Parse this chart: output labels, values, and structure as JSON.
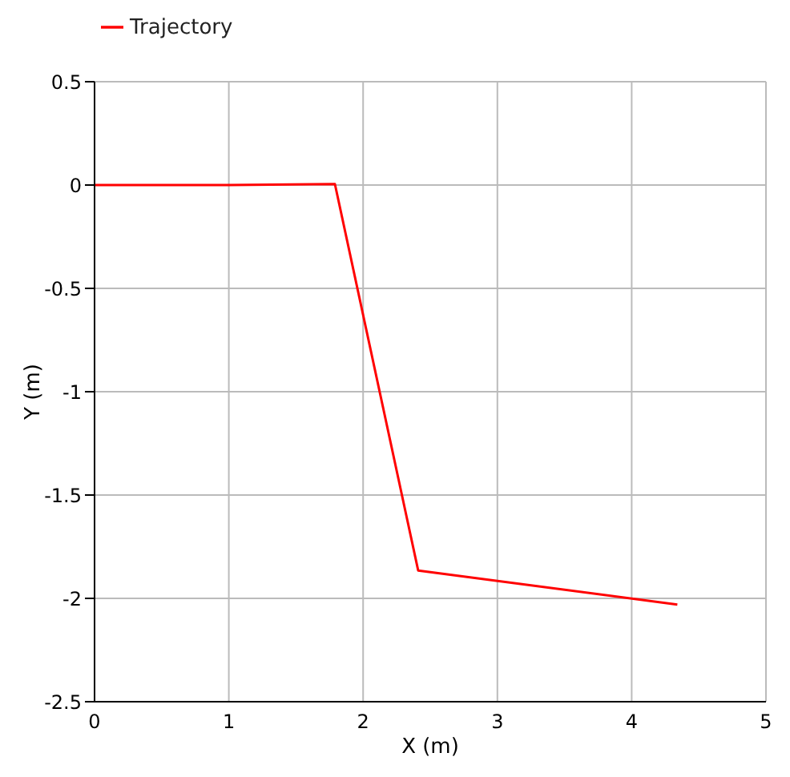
{
  "chart_data": {
    "type": "line",
    "xlabel": "X (m)",
    "ylabel": "Y (m)",
    "series": [
      {
        "name": "Trajectory",
        "color": "#ff0000",
        "x": [
          0,
          1.0,
          1.79,
          2.41,
          4.34
        ],
        "values": [
          0,
          0,
          0.005,
          -1.865,
          -2.03
        ]
      }
    ],
    "xlim": [
      0,
      5
    ],
    "xticks": [
      0,
      1,
      2,
      3,
      4,
      5
    ],
    "ylim": [
      -2.5,
      0.5
    ],
    "yticks": [
      -2.5,
      -2,
      -1.5,
      -1,
      -0.5,
      0,
      0.5
    ],
    "grid": true,
    "legend": "top left",
    "marker": "none",
    "line_style": "solid"
  }
}
